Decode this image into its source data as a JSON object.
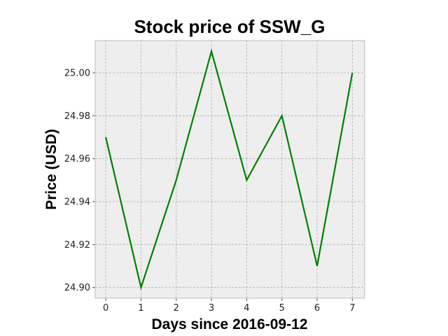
{
  "chart_data": {
    "type": "line",
    "title": "Stock price of SSW_G",
    "xlabel": "Days since 2016-09-12",
    "ylabel": "Price (USD)",
    "x": [
      0,
      1,
      2,
      3,
      4,
      5,
      6,
      7
    ],
    "series": [
      {
        "values": [
          24.97,
          24.9,
          24.95,
          25.01,
          24.95,
          24.98,
          24.91,
          25.0
        ]
      }
    ],
    "xlim": [
      -0.3,
      7.35
    ],
    "ylim": [
      24.895,
      25.015
    ],
    "xticks": [
      "0",
      "1",
      "2",
      "3",
      "4",
      "5",
      "6",
      "7"
    ],
    "yticks": [
      "24.90",
      "24.92",
      "24.94",
      "24.96",
      "24.98",
      "25.00"
    ],
    "grid": true,
    "line_color": "#008000",
    "plot_background": "#eeeeee",
    "grid_color": "#b0b0b0"
  }
}
